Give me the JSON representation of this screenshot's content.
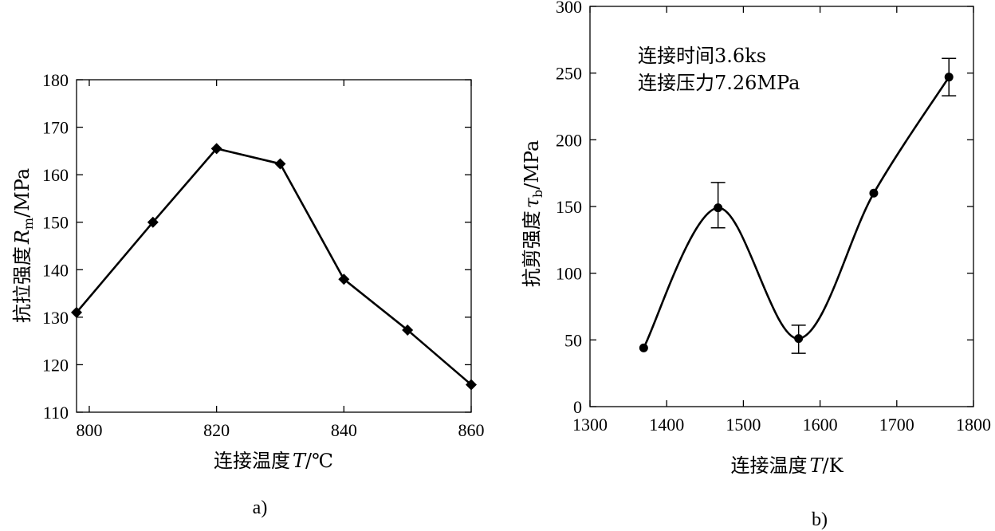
{
  "chart_data": [
    {
      "type": "line",
      "panel_label": "a)",
      "xlabel": "连接温度",
      "xvar": "T",
      "xunit": "/℃",
      "ylabel": "抗拉强度",
      "yvar": "R",
      "ysub": "m",
      "yunit": "/MPa",
      "xlim": [
        798,
        860
      ],
      "ylim": [
        110,
        180
      ],
      "xticks": [
        800,
        820,
        840,
        860
      ],
      "yticks": [
        110,
        120,
        130,
        140,
        150,
        160,
        170,
        180
      ],
      "grid": false,
      "marker": "diamond",
      "series": [
        {
          "x": [
            798,
            810,
            820,
            830,
            840,
            850,
            860
          ],
          "y": [
            131,
            150,
            165.5,
            162.3,
            138,
            127.3,
            115.8
          ]
        }
      ]
    },
    {
      "type": "line",
      "panel_label": "b)",
      "xlabel": "连接温度",
      "xvar": "T",
      "xunit": "/K",
      "ylabel": "抗剪强度",
      "yvar": "τ",
      "ysub": "b",
      "yunit": "/MPa",
      "xlim": [
        1300,
        1800
      ],
      "ylim": [
        0,
        300
      ],
      "xticks": [
        1300,
        1400,
        1500,
        1600,
        1700,
        1800
      ],
      "yticks": [
        0,
        50,
        100,
        150,
        200,
        250,
        300
      ],
      "grid": false,
      "marker": "circle",
      "smooth": true,
      "annotations": [
        "连接时间3.6ks",
        "连接压力7.26MPa"
      ],
      "series": [
        {
          "x": [
            1370,
            1467,
            1572,
            1670,
            1768
          ],
          "y": [
            44,
            149,
            51,
            160,
            247
          ],
          "err_low": [
            null,
            134,
            40,
            null,
            233
          ],
          "err_high": [
            null,
            168,
            61,
            null,
            261
          ]
        }
      ]
    }
  ]
}
